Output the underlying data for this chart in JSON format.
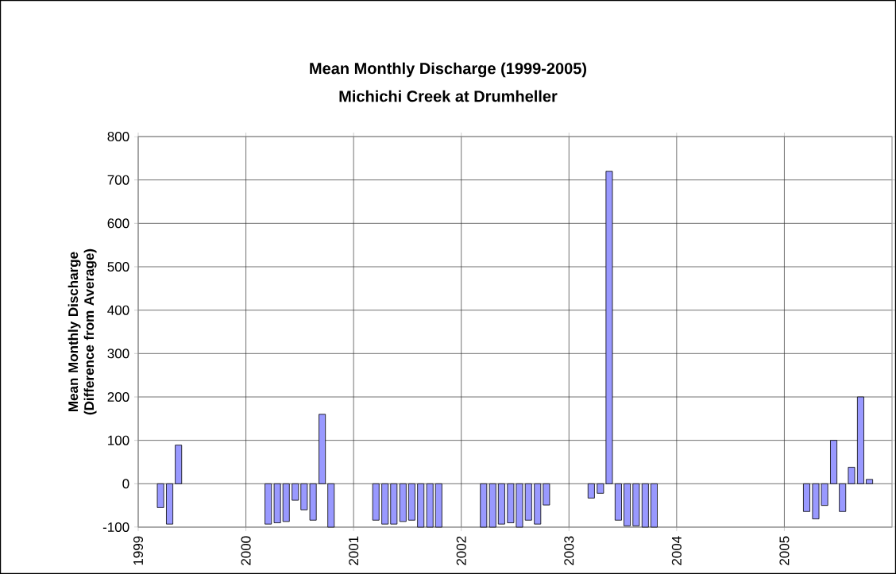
{
  "chart_data": {
    "type": "bar",
    "title": "Mean Monthly Discharge (1999-2005)",
    "subtitle": "Michichi Creek at Drumheller",
    "ylabel": "Mean Monthly Discharge (Difference from Average)",
    "x": [
      "1999-03-16",
      "1999-04-16",
      "1999-05-16",
      "2000-03-16",
      "2000-04-16",
      "2000-05-16",
      "2000-06-16",
      "2000-07-16",
      "2000-08-16",
      "2000-09-16",
      "2000-10-16",
      "2001-03-16",
      "2001-04-16",
      "2001-05-16",
      "2001-06-16",
      "2001-07-16",
      "2001-08-16",
      "2001-09-16",
      "2001-10-16",
      "2002-03-16",
      "2002-04-16",
      "2002-05-16",
      "2002-06-16",
      "2002-07-16",
      "2002-08-16",
      "2002-09-16",
      "2002-10-16",
      "2003-03-16",
      "2003-04-16",
      "2003-05-16",
      "2003-06-16",
      "2003-07-16",
      "2003-08-16",
      "2003-09-16",
      "2003-10-16",
      "2005-03-16",
      "2005-04-16",
      "2005-05-16",
      "2005-06-16",
      "2005-07-16",
      "2005-08-16",
      "2005-09-16",
      "2005-10-16"
    ],
    "values": [
      -55,
      -93,
      89,
      -93,
      -90,
      -87,
      -38,
      -60,
      -84,
      160,
      -100,
      -84,
      -93,
      -93,
      -87,
      -84,
      -100,
      -100,
      -100,
      -100,
      -100,
      -93,
      -90,
      -100,
      -84,
      -93,
      -49,
      -33,
      -22,
      720,
      -84,
      -97,
      -97,
      -100,
      -100,
      -64,
      -81,
      -50,
      100,
      -64,
      38,
      200,
      10
    ],
    "color": "#9999ff",
    "xlim": [
      "1999-01",
      "2006-01"
    ],
    "xticks": [
      {
        "value": "1999",
        "label": "1999"
      },
      {
        "value": "2000",
        "label": "2000"
      },
      {
        "value": "2001",
        "label": "2001"
      },
      {
        "value": "2002",
        "label": "2002"
      },
      {
        "value": "2003",
        "label": "2003"
      },
      {
        "value": "2004",
        "label": "2004"
      },
      {
        "value": "2005",
        "label": "2005"
      }
    ],
    "ylim": [
      -100,
      800
    ],
    "yticks": [
      -100,
      0,
      100,
      200,
      300,
      400,
      500,
      600,
      700,
      800
    ],
    "grid": true
  }
}
